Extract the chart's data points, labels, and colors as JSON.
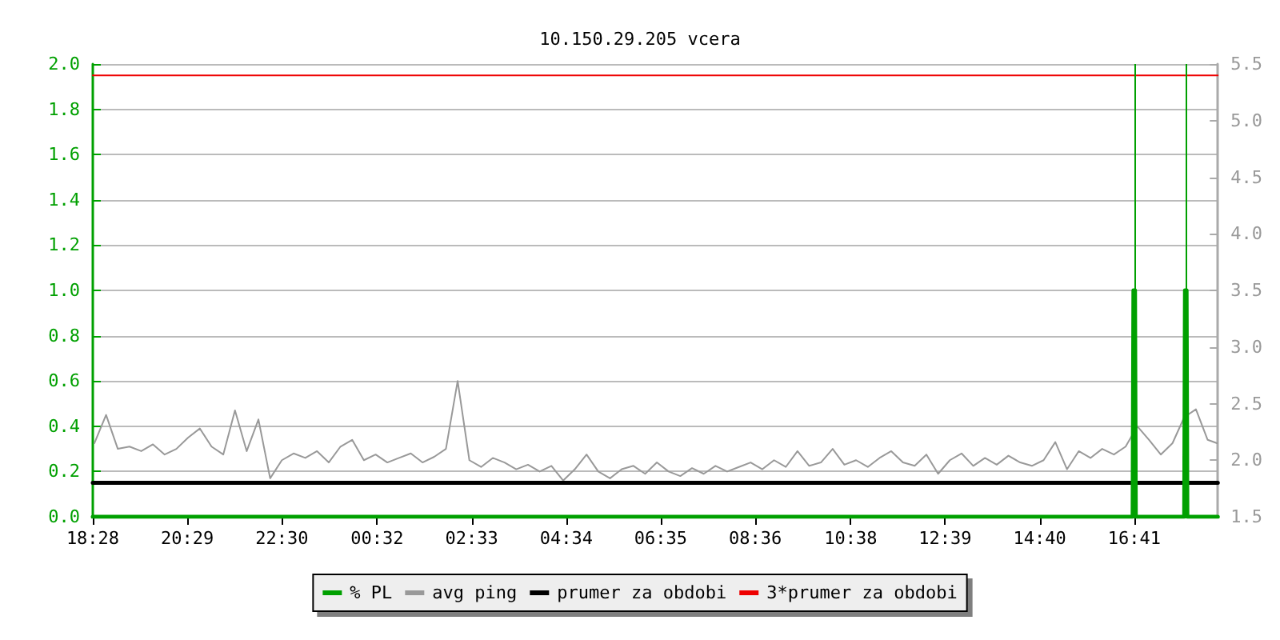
{
  "chart_data": {
    "type": "line",
    "title": "10.150.29.205 vcera",
    "xlim": [
      "--01-01T18:28",
      "--01-02T18:28"
    ],
    "xticks": [
      {
        "value": "--01-01T18:28",
        "label": "18:28"
      },
      {
        "value": "--01-01T20:29",
        "label": "20:29"
      },
      {
        "value": "--01-01T22:30",
        "label": "22:30"
      },
      {
        "value": "--01-02T00:32",
        "label": "00:32"
      },
      {
        "value": "--01-02T02:33",
        "label": "02:33"
      },
      {
        "value": "--01-02T04:34",
        "label": "04:34"
      },
      {
        "value": "--01-02T06:35",
        "label": "06:35"
      },
      {
        "value": "--01-02T08:36",
        "label": "08:36"
      },
      {
        "value": "--01-02T10:38",
        "label": "10:38"
      },
      {
        "value": "--01-02T12:39",
        "label": "12:39"
      },
      {
        "value": "--01-02T14:40",
        "label": "14:40"
      },
      {
        "value": "--01-02T16:41",
        "label": "16:41"
      }
    ],
    "ylim": [
      0,
      2
    ],
    "yticks": [
      {
        "value": 0,
        "label": "0.0"
      },
      0.2,
      0.4,
      0.6,
      0.8,
      {
        "value": 1,
        "label": "1.0"
      },
      1.2,
      1.4,
      1.6,
      1.8,
      {
        "value": 2,
        "label": "2.0"
      }
    ],
    "y2lim": [
      1.5,
      5.5
    ],
    "y2ticks": [
      1.5,
      {
        "value": 2,
        "label": "2.0"
      },
      2.5,
      {
        "value": 3,
        "label": "3.0"
      },
      3.5,
      {
        "value": 4,
        "label": "4.0"
      },
      4.5,
      {
        "value": 5,
        "label": "5.0"
      },
      5.5
    ],
    "grid": "y",
    "legend": "bottom",
    "marker": "none",
    "line_style": "solid",
    "ref_lines": [
      {
        "axis": "x",
        "value": "--01-02T16:41",
        "label": null,
        "color": "#00a000"
      },
      {
        "axis": "x",
        "value": "--01-02T17:47",
        "label": null,
        "color": "#00a000"
      }
    ],
    "series": [
      {
        "name": "% PL",
        "color": "#00a000",
        "x": [
          "--01-01T18:28",
          "--01-02T16:39",
          "--01-02T16:40",
          "--01-02T16:42",
          "--01-02T16:43",
          "--01-02T17:45",
          "--01-02T17:46",
          "--01-02T17:48",
          "--01-02T17:49",
          "--01-02T18:28"
        ],
        "values": [
          0,
          0,
          1,
          1,
          0,
          0,
          1,
          1,
          0,
          0
        ]
      },
      {
        "name": "avg ping",
        "color": "#999999",
        "axis": "y2",
        "x": [
          "--01-01T18:30",
          "--01-01T18:45",
          "--01-01T19:00",
          "--01-01T19:15",
          "--01-01T19:30",
          "--01-01T19:45",
          "--01-01T20:00",
          "--01-01T20:15",
          "--01-01T20:30",
          "--01-01T20:45",
          "--01-01T21:00",
          "--01-01T21:15",
          "--01-01T21:30",
          "--01-01T21:45",
          "--01-01T22:00",
          "--01-01T22:15",
          "--01-01T22:30",
          "--01-01T22:45",
          "--01-01T23:00",
          "--01-01T23:15",
          "--01-01T23:30",
          "--01-01T23:45",
          "--01-02T00:00",
          "--01-02T00:15",
          "--01-02T00:30",
          "--01-02T00:45",
          "--01-02T01:00",
          "--01-02T01:15",
          "--01-02T01:30",
          "--01-02T01:45",
          "--01-02T02:00",
          "--01-02T02:15",
          "--01-02T02:30",
          "--01-02T02:45",
          "--01-02T03:00",
          "--01-02T03:15",
          "--01-02T03:30",
          "--01-02T03:45",
          "--01-02T04:00",
          "--01-02T04:15",
          "--01-02T04:30",
          "--01-02T04:45",
          "--01-02T05:00",
          "--01-02T05:15",
          "--01-02T05:30",
          "--01-02T05:45",
          "--01-02T06:00",
          "--01-02T06:15",
          "--01-02T06:30",
          "--01-02T06:45",
          "--01-02T07:00",
          "--01-02T07:15",
          "--01-02T07:30",
          "--01-02T07:45",
          "--01-02T08:00",
          "--01-02T08:15",
          "--01-02T08:30",
          "--01-02T08:45",
          "--01-02T09:00",
          "--01-02T09:15",
          "--01-02T09:30",
          "--01-02T09:45",
          "--01-02T10:00",
          "--01-02T10:15",
          "--01-02T10:30",
          "--01-02T10:45",
          "--01-02T11:00",
          "--01-02T11:15",
          "--01-02T11:30",
          "--01-02T11:45",
          "--01-02T12:00",
          "--01-02T12:15",
          "--01-02T12:30",
          "--01-02T12:45",
          "--01-02T13:00",
          "--01-02T13:15",
          "--01-02T13:30",
          "--01-02T13:45",
          "--01-02T14:00",
          "--01-02T14:15",
          "--01-02T14:30",
          "--01-02T14:45",
          "--01-02T15:00",
          "--01-02T15:15",
          "--01-02T15:30",
          "--01-02T15:45",
          "--01-02T16:00",
          "--01-02T16:15",
          "--01-02T16:30",
          "--01-02T16:45",
          "--01-02T17:00",
          "--01-02T17:15",
          "--01-02T17:30",
          "--01-02T17:45",
          "--01-02T18:00",
          "--01-02T18:15",
          "--01-02T18:27"
        ],
        "values": [
          2.15,
          2.4,
          2.1,
          2.12,
          2.08,
          2.14,
          2.05,
          2.1,
          2.2,
          2.28,
          2.12,
          2.05,
          2.44,
          2.08,
          2.36,
          1.84,
          2.0,
          2.06,
          2.02,
          2.08,
          1.98,
          2.12,
          2.18,
          2.0,
          2.05,
          1.98,
          2.02,
          2.06,
          1.98,
          2.03,
          2.1,
          2.7,
          2.0,
          1.94,
          2.02,
          1.98,
          1.92,
          1.96,
          1.9,
          1.95,
          1.82,
          1.92,
          2.05,
          1.9,
          1.84,
          1.92,
          1.95,
          1.88,
          1.98,
          1.9,
          1.86,
          1.93,
          1.88,
          1.95,
          1.9,
          1.94,
          1.98,
          1.92,
          2.0,
          1.94,
          2.08,
          1.95,
          1.98,
          2.1,
          1.96,
          2.0,
          1.94,
          2.02,
          2.08,
          1.98,
          1.95,
          2.05,
          1.88,
          2.0,
          2.06,
          1.95,
          2.02,
          1.96,
          2.04,
          1.98,
          1.95,
          2.0,
          2.16,
          1.92,
          2.08,
          2.02,
          2.1,
          2.05,
          2.12,
          2.3,
          2.18,
          2.05,
          2.15,
          2.38,
          2.45,
          2.18,
          2.15
        ]
      },
      {
        "name": "prumer za obdobi",
        "color": "#000000",
        "axis": "y2",
        "x": [
          "--01-01T18:28",
          "--01-02T18:28"
        ],
        "values": [
          1.8,
          1.8
        ]
      },
      {
        "name": "3*prumer za obdobi",
        "color": "#ee0000",
        "axis": "y2",
        "x": [
          "--01-01T18:28",
          "--01-02T18:28"
        ],
        "values": [
          5.4,
          5.4
        ]
      }
    ]
  }
}
